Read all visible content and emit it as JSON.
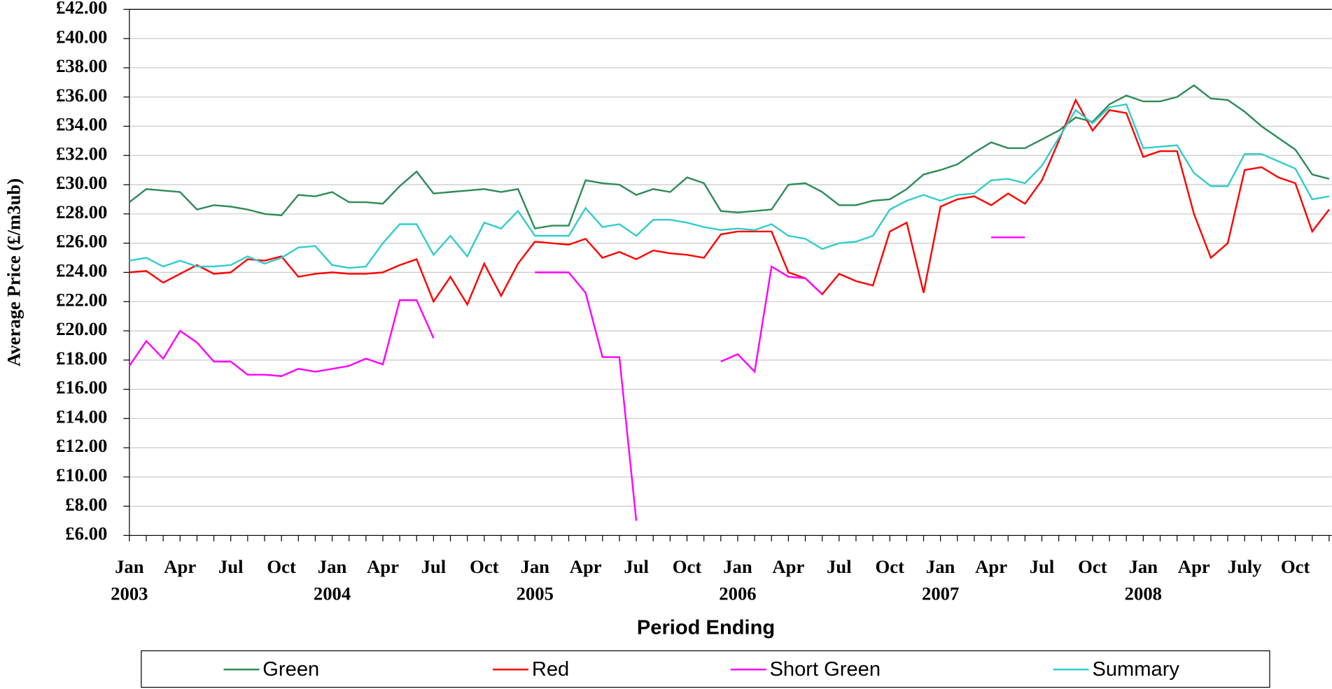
{
  "chart_data": {
    "type": "line",
    "y_label": "Average Price (£/m3ub)",
    "x_label": "Period Ending",
    "categories": [
      "Jan",
      null,
      null,
      "Apr",
      null,
      null,
      "Jul",
      null,
      null,
      "Oct",
      null,
      null,
      "Jan",
      null,
      null,
      "Apr",
      null,
      null,
      "Jul",
      null,
      null,
      "Oct",
      null,
      null,
      "Jan",
      null,
      null,
      "Apr",
      null,
      null,
      "Jul",
      null,
      null,
      "Oct",
      null,
      null,
      "Jan",
      null,
      null,
      "Apr",
      null,
      null,
      "Jul",
      null,
      null,
      "Oct",
      null,
      null,
      "Jan",
      null,
      null,
      "Apr",
      null,
      null,
      "Jul",
      null,
      null,
      "Oct",
      null,
      null,
      "Jan",
      null,
      null,
      "Apr",
      null,
      null,
      "July",
      null,
      null,
      "Oct",
      null,
      null
    ],
    "year_labels": [
      "2003",
      "2004",
      "2005",
      "2006",
      "2007",
      "2008"
    ],
    "ylim": [
      6,
      42
    ],
    "yticks": [
      {
        "value": 6,
        "label": "£6.00"
      },
      {
        "value": 8,
        "label": "£8.00"
      },
      {
        "value": 10,
        "label": "£10.00"
      },
      {
        "value": 12,
        "label": "£12.00"
      },
      {
        "value": 14,
        "label": "£14.00"
      },
      {
        "value": 16,
        "label": "£16.00"
      },
      {
        "value": 18,
        "label": "£18.00"
      },
      {
        "value": 20,
        "label": "£20.00"
      },
      {
        "value": 22,
        "label": "£22.00"
      },
      {
        "value": 24,
        "label": "£24.00"
      },
      {
        "value": 26,
        "label": "£26.00"
      },
      {
        "value": 28,
        "label": "£28.00"
      },
      {
        "value": 30,
        "label": "£30.00"
      },
      {
        "value": 32,
        "label": "£32.00"
      },
      {
        "value": 34,
        "label": "£34.00"
      },
      {
        "value": 36,
        "label": "£36.00"
      },
      {
        "value": 38,
        "label": "£38.00"
      },
      {
        "value": 40,
        "label": "£40.00"
      },
      {
        "value": 42,
        "label": "£42.00"
      }
    ],
    "grid": true,
    "series": [
      {
        "name": "Green",
        "color": "#2e8b57",
        "values": [
          28.8,
          29.7,
          29.6,
          29.5,
          28.3,
          28.6,
          28.5,
          28.3,
          28.0,
          27.9,
          29.3,
          29.2,
          29.5,
          28.8,
          28.8,
          28.7,
          29.9,
          30.9,
          29.4,
          29.5,
          29.6,
          29.7,
          29.5,
          29.7,
          27.0,
          27.2,
          27.2,
          30.3,
          30.1,
          30.0,
          29.3,
          29.7,
          29.5,
          30.5,
          30.1,
          28.2,
          28.1,
          28.2,
          28.3,
          30.0,
          30.1,
          29.5,
          28.6,
          28.6,
          28.9,
          29.0,
          29.7,
          30.7,
          31.0,
          31.4,
          32.2,
          32.9,
          32.5,
          32.5,
          33.1,
          33.7,
          34.6,
          34.3,
          35.5,
          36.1,
          35.7,
          35.7,
          36.0,
          36.8,
          35.9,
          35.8,
          35.0,
          34.0,
          33.2,
          32.4,
          30.7,
          30.4
        ]
      },
      {
        "name": "Red",
        "color": "#ff0000",
        "values": [
          24.0,
          24.1,
          23.3,
          23.9,
          24.5,
          23.9,
          24.0,
          24.9,
          24.8,
          25.1,
          23.7,
          23.9,
          24.0,
          23.9,
          23.9,
          24.0,
          24.5,
          24.9,
          22.0,
          23.7,
          21.8,
          24.6,
          22.4,
          24.6,
          26.1,
          26.0,
          25.9,
          26.3,
          25.0,
          25.4,
          24.9,
          25.5,
          25.3,
          25.2,
          25.0,
          26.6,
          26.8,
          26.8,
          26.8,
          24.0,
          23.6,
          22.5,
          23.9,
          23.4,
          23.1,
          26.8,
          27.4,
          22.6,
          28.5,
          29.0,
          29.2,
          28.6,
          29.4,
          28.7,
          30.3,
          33.0,
          35.8,
          33.7,
          35.1,
          34.9,
          31.9,
          32.3,
          32.3,
          28.0,
          25.0,
          26.0,
          31.0,
          31.2,
          30.5,
          30.1,
          26.8,
          28.3
        ]
      },
      {
        "name": "Short Green",
        "color": "#ff00ff",
        "values": [
          17.6,
          19.3,
          18.1,
          20.0,
          19.2,
          17.9,
          17.9,
          17.0,
          17.0,
          16.9,
          17.4,
          17.2,
          17.4,
          17.6,
          18.1,
          17.7,
          22.1,
          22.1,
          19.5,
          null,
          null,
          null,
          null,
          null,
          24.0,
          24.0,
          24.0,
          22.6,
          18.2,
          18.2,
          7.0,
          null,
          null,
          null,
          null,
          17.9,
          18.4,
          17.2,
          24.4,
          23.7,
          23.6,
          22.5,
          null,
          null,
          null,
          null,
          null,
          null,
          null,
          null,
          null,
          26.4,
          26.4,
          26.4,
          null,
          null,
          null,
          null,
          null,
          null,
          null,
          null,
          null,
          null,
          null,
          null,
          null,
          null,
          null,
          null,
          null,
          null
        ]
      },
      {
        "name": "Summary",
        "color": "#33cccc",
        "values": [
          24.8,
          25.0,
          24.4,
          24.8,
          24.4,
          24.4,
          24.5,
          25.1,
          24.6,
          25.0,
          25.7,
          25.8,
          24.5,
          24.3,
          24.4,
          26.0,
          27.3,
          27.3,
          25.2,
          26.5,
          25.1,
          27.4,
          27.0,
          28.2,
          26.5,
          26.5,
          26.5,
          28.4,
          27.1,
          27.3,
          26.5,
          27.6,
          27.6,
          27.4,
          27.1,
          26.9,
          27.0,
          26.9,
          27.3,
          26.5,
          26.3,
          25.6,
          26.0,
          26.1,
          26.5,
          28.3,
          28.9,
          29.3,
          28.9,
          29.3,
          29.4,
          30.3,
          30.4,
          30.1,
          31.3,
          33.2,
          35.1,
          34.2,
          35.3,
          35.5,
          32.5,
          32.6,
          32.7,
          30.8,
          29.9,
          29.9,
          32.1,
          32.1,
          31.6,
          31.1,
          29.0,
          29.2
        ]
      }
    ]
  }
}
